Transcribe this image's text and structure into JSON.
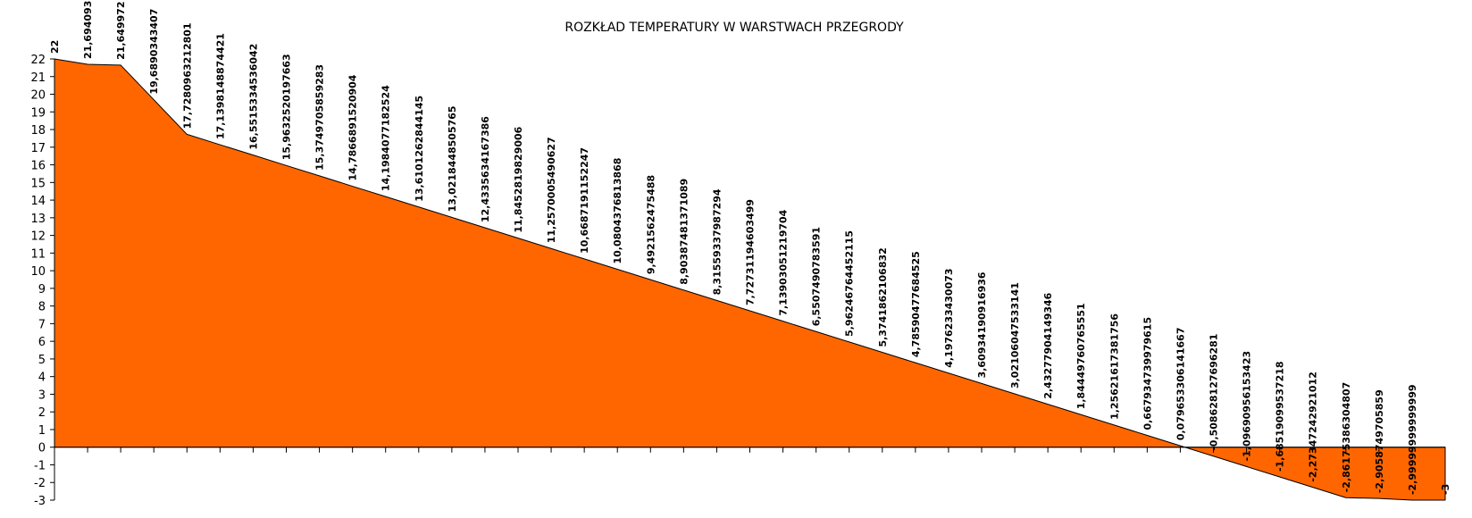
{
  "chart_data": {
    "type": "area",
    "title": "ROZKŁAD TEMPERATURY W WARSTWACH PRZEGRODY",
    "xlabel": "",
    "ylabel": "",
    "ylim": [
      -3,
      22
    ],
    "yticks": [
      "-3",
      "-2",
      "-1",
      "0",
      "1",
      "2",
      "3",
      "4",
      "5",
      "6",
      "7",
      "8",
      "9",
      "10",
      "11",
      "12",
      "13",
      "14",
      "15",
      "16",
      "17",
      "18",
      "19",
      "20",
      "21",
      "22"
    ],
    "grid": false,
    "legend": "none",
    "colors": {
      "fill": "#ff6600",
      "stroke": "#000000"
    },
    "values": [
      22,
      21.69409314,
      21.64997223,
      19.68903434,
      17.7280963212801,
      17.1398148874421,
      16.5515334536042,
      15.9632520197663,
      15.3749705859283,
      14.7866891520904,
      14.1984077182524,
      13.6101262844145,
      13.0218448505765,
      12.4335634167386,
      11.8452819829006,
      11.2570005490627,
      10.6687191152247,
      10.0804376813868,
      9.4921562475488,
      8.90387481371089,
      8.31559337987294,
      7.72731194603499,
      7.13903051219704,
      6.5507490783591,
      5.96246764452115,
      5.3741862106832,
      4.78590477684525,
      4.1976233430073,
      3.60934190916936,
      3.02106047533141,
      2.43277904149346,
      1.84449760765551,
      1.25621617381756,
      0.667934739979615,
      0.079653306141667,
      -0.508628127696281,
      -1.09690956153423,
      -1.68519099537218,
      -2.27347242921012,
      -2.86175386304807,
      -2.90587497058592,
      -2.99999999999999,
      -3
    ],
    "labels": [
      "22",
      "21,694093",
      "21,649972",
      "19,6890343407",
      "17,7280963212801",
      "17,1398148874421",
      "16,5515334536042",
      "15,9632520197663",
      "15,3749705859283",
      "14,7866891520904",
      "14,1984077182524",
      "13,6101262844145",
      "13,0218448505765",
      "12,4335634167386",
      "11,8452819829006",
      "11,2570005490627",
      "10,6687191152247",
      "10,0804376813868",
      "9,4921562475488",
      "8,90387481371089",
      "8,31559337987294",
      "7,72731194603499",
      "7,13903051219704",
      "6,5507490783591",
      "5,96246764452115",
      "5,3741862106832",
      "4,78590477684525",
      "4,1976233430073",
      "3,60934190916936",
      "3,02106047533141",
      "2,43277904149346",
      "1,84449760765551",
      "1,25621617381756",
      "0,667934739979615",
      "0,079653306141667",
      "-0,508628127696281",
      "-1,09690956153423",
      "-1,68519099537218",
      "-2,27347242921012",
      "-2,86175386304807",
      "-2,9058749705859",
      "-2,99999999999999",
      "-3"
    ]
  }
}
